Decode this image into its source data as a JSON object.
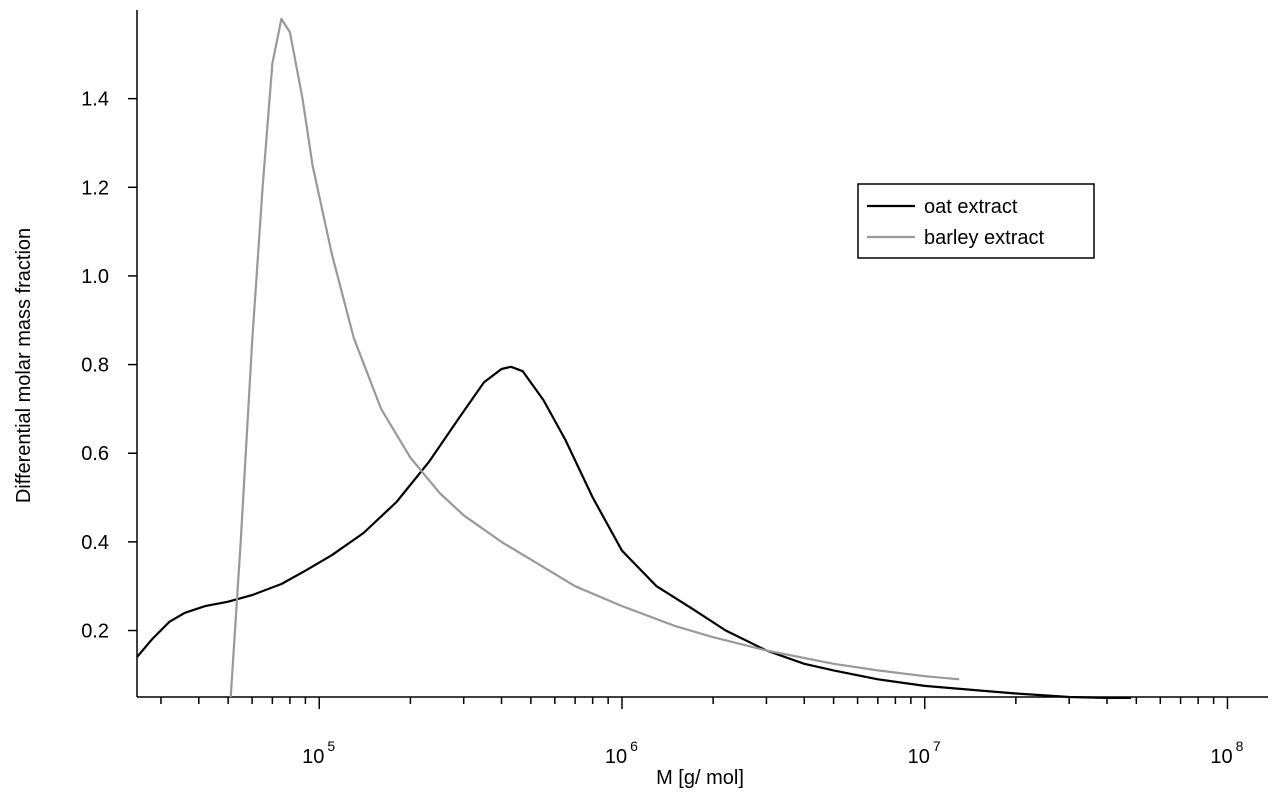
{
  "chart_data": {
    "type": "line",
    "title": "",
    "xlabel": "M [g/ mol]",
    "ylabel": "Differential molar mass fraction",
    "xscale": "log",
    "xlim": [
      25000,
      110000000
    ],
    "ylim": [
      0.05,
      1.6
    ],
    "grid": false,
    "legend_position": "top-right",
    "x_ticks": [
      {
        "value": 100000,
        "base": "10",
        "exp": "5"
      },
      {
        "value": 1000000,
        "base": "10",
        "exp": "6"
      },
      {
        "value": 10000000,
        "base": "10",
        "exp": "7"
      },
      {
        "value": 100000000,
        "base": "10",
        "exp": "8"
      }
    ],
    "y_ticks": [
      {
        "value": 0.2,
        "label": "0.2"
      },
      {
        "value": 0.4,
        "label": "0.4"
      },
      {
        "value": 0.6,
        "label": "0.6"
      },
      {
        "value": 0.8,
        "label": "0.8"
      },
      {
        "value": 1.0,
        "label": "1.0"
      },
      {
        "value": 1.2,
        "label": "1.2"
      },
      {
        "value": 1.4,
        "label": "1.4"
      }
    ],
    "series": [
      {
        "name": "oat extract",
        "color": "#000000",
        "points": [
          [
            25000,
            0.14
          ],
          [
            28000,
            0.18
          ],
          [
            32000,
            0.22
          ],
          [
            36000,
            0.24
          ],
          [
            42000,
            0.255
          ],
          [
            50000,
            0.265
          ],
          [
            60000,
            0.28
          ],
          [
            75000,
            0.305
          ],
          [
            90000,
            0.335
          ],
          [
            110000,
            0.37
          ],
          [
            140000,
            0.42
          ],
          [
            180000,
            0.49
          ],
          [
            230000,
            0.58
          ],
          [
            290000,
            0.68
          ],
          [
            350000,
            0.76
          ],
          [
            400000,
            0.79
          ],
          [
            430000,
            0.795
          ],
          [
            470000,
            0.785
          ],
          [
            550000,
            0.72
          ],
          [
            650000,
            0.63
          ],
          [
            800000,
            0.5
          ],
          [
            1000000,
            0.38
          ],
          [
            1300000,
            0.3
          ],
          [
            1700000,
            0.25
          ],
          [
            2200000,
            0.2
          ],
          [
            3000000,
            0.155
          ],
          [
            4000000,
            0.125
          ],
          [
            5000000,
            0.11
          ],
          [
            7000000,
            0.09
          ],
          [
            10000000,
            0.075
          ],
          [
            15000000,
            0.065
          ],
          [
            20000000,
            0.058
          ],
          [
            30000000,
            0.05
          ],
          [
            40000000,
            0.048
          ],
          [
            48000000,
            0.048
          ]
        ]
      },
      {
        "name": "barley extract",
        "color": "#999999",
        "points": [
          [
            51000,
            0.05
          ],
          [
            55000,
            0.4
          ],
          [
            60000,
            0.85
          ],
          [
            65000,
            1.2
          ],
          [
            70000,
            1.48
          ],
          [
            75000,
            1.58
          ],
          [
            80000,
            1.55
          ],
          [
            88000,
            1.4
          ],
          [
            95000,
            1.25
          ],
          [
            110000,
            1.05
          ],
          [
            130000,
            0.86
          ],
          [
            160000,
            0.7
          ],
          [
            200000,
            0.59
          ],
          [
            250000,
            0.51
          ],
          [
            300000,
            0.46
          ],
          [
            400000,
            0.4
          ],
          [
            500000,
            0.36
          ],
          [
            700000,
            0.3
          ],
          [
            1000000,
            0.255
          ],
          [
            1500000,
            0.21
          ],
          [
            2000000,
            0.185
          ],
          [
            3000000,
            0.155
          ],
          [
            5000000,
            0.125
          ],
          [
            7000000,
            0.11
          ],
          [
            10000000,
            0.097
          ],
          [
            13000000,
            0.09
          ]
        ]
      }
    ]
  }
}
